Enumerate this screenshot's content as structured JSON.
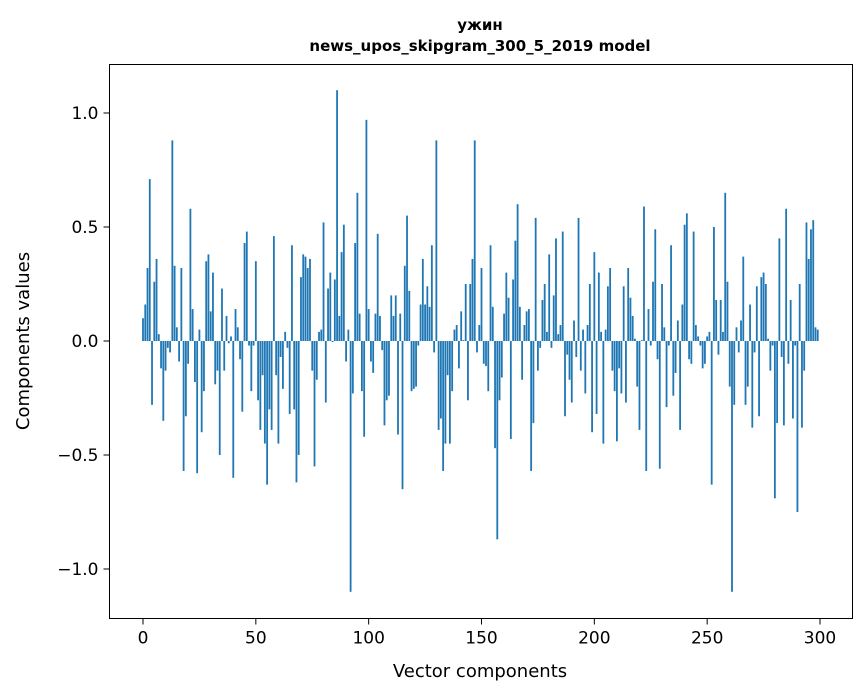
{
  "chart_data": {
    "type": "bar",
    "title_lines": [
      "ужин",
      "news_upos_skipgram_300_5_2019 model"
    ],
    "xlabel": "Vector components",
    "ylabel": "Components values",
    "xlim": [
      -13,
      313
    ],
    "ylim": [
      -1.22,
      1.22
    ],
    "xticks": [
      0,
      50,
      100,
      150,
      200,
      250,
      300
    ],
    "xtick_labels": [
      "0",
      "50",
      "100",
      "150",
      "200",
      "250",
      "300"
    ],
    "yticks": [
      1.0,
      0.5,
      0.0,
      -0.5,
      -1.0
    ],
    "ytick_labels": [
      "1.0",
      "0.5",
      "0.0",
      "−0.5",
      "−1.0"
    ],
    "grid": false,
    "bar_color": "#1f77b4",
    "values": [
      0.1,
      0.16,
      0.32,
      0.71,
      -0.28,
      0.26,
      0.36,
      0.03,
      -0.12,
      -0.35,
      -0.13,
      -0.03,
      -0.05,
      0.88,
      0.33,
      0.06,
      -0.09,
      0.32,
      -0.57,
      -0.33,
      -0.1,
      0.58,
      0.14,
      -0.18,
      -0.58,
      0.05,
      -0.4,
      -0.22,
      0.35,
      0.38,
      0.13,
      0.3,
      -0.19,
      -0.13,
      -0.5,
      0.23,
      -0.13,
      0.11,
      -0.01,
      0.02,
      -0.6,
      0.14,
      0.06,
      -0.08,
      -0.31,
      0.43,
      0.48,
      -0.02,
      -0.22,
      -0.02,
      0.35,
      -0.26,
      -0.39,
      -0.15,
      -0.45,
      -0.63,
      -0.3,
      -0.39,
      0.46,
      -0.15,
      -0.45,
      -0.07,
      -0.21,
      0.04,
      -0.03,
      -0.32,
      0.42,
      -0.3,
      -0.62,
      -0.5,
      0.28,
      0.38,
      0.37,
      0.32,
      0.36,
      -0.13,
      -0.55,
      -0.17,
      0.04,
      0.05,
      0.52,
      -0.27,
      0.23,
      0.3,
      -0.005,
      0.27,
      1.1,
      0.11,
      0.39,
      0.51,
      -0.09,
      0.05,
      -1.1,
      -0.23,
      0.43,
      0.65,
      0.12,
      -0.22,
      -0.42,
      0.97,
      0.14,
      -0.09,
      -0.14,
      0.12,
      0.47,
      0.11,
      -0.04,
      -0.37,
      -0.26,
      -0.24,
      0.2,
      0.11,
      0.2,
      -0.41,
      0.12,
      -0.65,
      0.33,
      0.55,
      0.22,
      -0.22,
      -0.21,
      -0.2,
      -0.02,
      0.16,
      0.36,
      0.16,
      0.24,
      0.15,
      0.42,
      -0.05,
      0.88,
      -0.39,
      -0.34,
      -0.57,
      -0.45,
      -0.15,
      -0.45,
      -0.22,
      0.05,
      0.07,
      -0.12,
      0.13,
      0.004,
      0.25,
      -0.26,
      0.25,
      0.36,
      0.88,
      -0.05,
      0.07,
      0.32,
      -0.1,
      -0.11,
      -0.22,
      0.42,
      0.15,
      -0.47,
      -0.87,
      -0.26,
      -0.16,
      0.12,
      0.3,
      0.19,
      -0.43,
      0.27,
      0.44,
      0.6,
      0.15,
      -0.17,
      0.07,
      0.13,
      0.14,
      -0.57,
      -0.36,
      0.54,
      -0.13,
      -0.03,
      0.18,
      0.25,
      0.04,
      0.38,
      -0.03,
      0.2,
      0.45,
      0.03,
      0.07,
      0.48,
      -0.33,
      -0.06,
      -0.17,
      -0.27,
      0.09,
      -0.07,
      0.54,
      -0.13,
      0.05,
      -0.23,
      0.07,
      0.25,
      -0.4,
      0.39,
      -0.32,
      0.3,
      0.04,
      -0.45,
      0.05,
      0.24,
      0.32,
      -0.13,
      -0.22,
      -0.44,
      -0.12,
      -0.23,
      0.24,
      -0.27,
      0.32,
      0.19,
      0.11,
      0.01,
      -0.2,
      -0.39,
      0.004,
      0.59,
      -0.57,
      0.14,
      -0.02,
      0.26,
      0.49,
      -0.08,
      -0.56,
      0.25,
      0.06,
      -0.29,
      -0.02,
      0.42,
      -0.24,
      -0.14,
      0.09,
      -0.39,
      0.16,
      0.51,
      0.56,
      -0.08,
      -0.1,
      0.48,
      0.07,
      0.02,
      -0.02,
      -0.12,
      -0.1,
      0.02,
      0.04,
      -0.63,
      0.5,
      0.18,
      -0.06,
      0.18,
      0.04,
      0.65,
      0.26,
      -0.2,
      -1.1,
      -0.28,
      0.06,
      -0.05,
      0.09,
      0.37,
      -0.28,
      -0.2,
      0.16,
      -0.38,
      -0.05,
      0.24,
      -0.33,
      0.28,
      0.3,
      0.25,
      0.01,
      -0.13,
      -0.02,
      -0.69,
      -0.36,
      0.45,
      -0.07,
      -0.37,
      0.58,
      -0.1,
      0.18,
      -0.34,
      -0.02,
      -0.75,
      0.25,
      -0.38,
      -0.13,
      0.52,
      0.36,
      0.49,
      0.53,
      0.06,
      0.05
    ]
  }
}
